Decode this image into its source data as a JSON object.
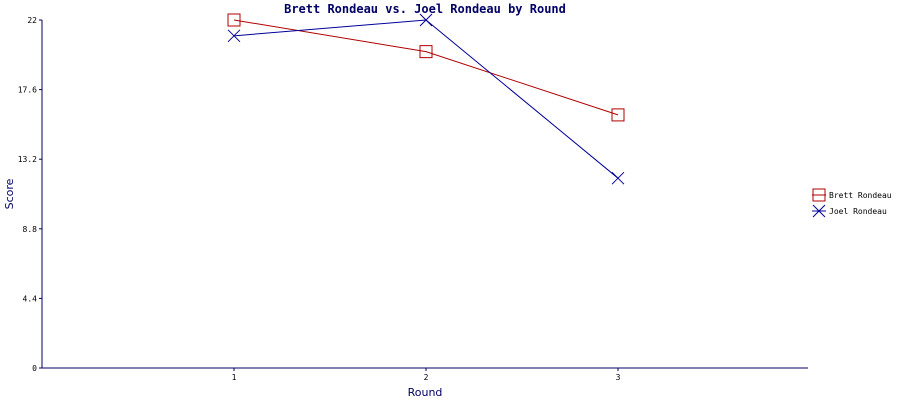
{
  "chart_data": {
    "type": "line",
    "title": "Brett Rondeau vs. Joel Rondeau by Round",
    "xlabel": "Round",
    "ylabel": "Score",
    "categories": [
      "1",
      "2",
      "3"
    ],
    "ylim": [
      0,
      22
    ],
    "yticks": [
      "0",
      "4.4",
      "8.8",
      "13.2",
      "17.6",
      "22"
    ],
    "series": [
      {
        "name": "Brett Rondeau",
        "values": [
          22,
          20,
          16
        ],
        "color": "#b00000",
        "marker": "square"
      },
      {
        "name": "Joel Rondeau",
        "values": [
          21,
          22,
          12
        ],
        "color": "#000099",
        "marker": "x"
      }
    ],
    "legend_position": "right",
    "grid": false
  }
}
